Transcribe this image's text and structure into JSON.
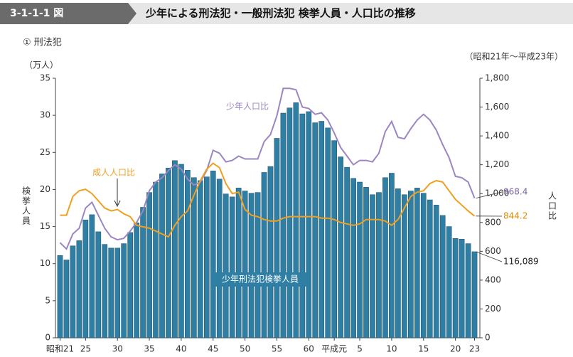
{
  "chart_data": {
    "type": "bar",
    "figure_number": "3-1-1-1 図",
    "title": "少年による刑法犯・一般刑法犯 検挙人員・人口比の推移",
    "subtitle": "① 刑法犯",
    "period": "（昭和21年～平成23年）",
    "y_unit": "（万人）",
    "ylabel": "検挙人員",
    "y2label": "人口比",
    "categories": [
      "昭和21",
      null,
      null,
      null,
      "25",
      null,
      null,
      null,
      null,
      "30",
      null,
      null,
      null,
      null,
      "35",
      null,
      null,
      null,
      null,
      "40",
      null,
      null,
      null,
      null,
      "45",
      null,
      null,
      null,
      null,
      "50",
      null,
      null,
      null,
      null,
      "55",
      null,
      null,
      null,
      null,
      "60",
      null,
      null,
      null,
      "平成元",
      null,
      null,
      null,
      "5",
      null,
      null,
      null,
      null,
      "10",
      null,
      null,
      null,
      null,
      "15",
      null,
      null,
      null,
      null,
      "20",
      null,
      null,
      "23"
    ],
    "ylim": [
      0,
      35
    ],
    "yticks": [
      0,
      5,
      10,
      15,
      20,
      25,
      30,
      35
    ],
    "y2lim": [
      0,
      1800
    ],
    "y2ticks": [
      0,
      200,
      400,
      600,
      800,
      {
        "value": 1000,
        "label": "1,000"
      },
      {
        "value": 1200,
        "label": "1,200"
      },
      {
        "value": 1400,
        "label": "1,400"
      },
      {
        "value": 1600,
        "label": "1,600"
      },
      {
        "value": 1800,
        "label": "1,800"
      }
    ],
    "series": [
      {
        "name": "少年刑法犯検挙人員",
        "type": "bar",
        "color": "#2f7ea3",
        "values": [
          11.1,
          10.5,
          12.4,
          13.1,
          15.9,
          16.6,
          14.3,
          12.6,
          12.1,
          12.1,
          12.7,
          14.2,
          15.5,
          17.6,
          19.6,
          21.0,
          22.1,
          22.9,
          23.9,
          23.4,
          22.6,
          21.6,
          21.2,
          21.7,
          22.5,
          21.4,
          19.4,
          19.0,
          20.2,
          19.8,
          19.5,
          19.6,
          22.3,
          23.1,
          26.9,
          30.3,
          31.0,
          31.7,
          30.2,
          30.5,
          29.0,
          29.2,
          28.3,
          26.6,
          24.4,
          23.0,
          21.5,
          21.0,
          20.3,
          19.3,
          19.6,
          21.6,
          22.2,
          20.1,
          19.3,
          19.8,
          20.2,
          19.5,
          18.6,
          17.9,
          16.5,
          15.0,
          13.4,
          13.3,
          12.7,
          11.6089
        ],
        "value_labels": [
          null,
          null,
          null,
          null,
          null,
          null,
          null,
          null,
          null,
          null,
          null,
          null,
          null,
          null,
          null,
          null,
          null,
          null,
          null,
          null,
          null,
          null,
          null,
          null,
          null,
          null,
          null,
          null,
          null,
          null,
          null,
          null,
          null,
          null,
          null,
          null,
          null,
          null,
          null,
          null,
          null,
          null,
          null,
          null,
          null,
          null,
          null,
          null,
          null,
          null,
          null,
          null,
          null,
          null,
          null,
          null,
          null,
          null,
          null,
          null,
          null,
          null,
          null,
          null,
          null,
          "116,089"
        ]
      },
      {
        "name": "少年人口比",
        "type": "line",
        "axis": "y2",
        "color": "#9b86c2",
        "values": [
          660,
          616,
          720,
          760,
          900,
          940,
          850,
          760,
          700,
          680,
          690,
          740,
          800,
          880,
          1020,
          1080,
          1110,
          1160,
          1200,
          1170,
          1100,
          1060,
          1080,
          1160,
          1300,
          1280,
          1220,
          1230,
          1260,
          1240,
          1240,
          1240,
          1360,
          1410,
          1540,
          1730,
          1730,
          1720,
          1600,
          1590,
          1550,
          1560,
          1510,
          1420,
          1320,
          1260,
          1200,
          1230,
          1230,
          1220,
          1280,
          1430,
          1500,
          1390,
          1380,
          1450,
          1510,
          1550,
          1510,
          1440,
          1340,
          1250,
          1120,
          1110,
          1080,
          968.4
        ]
      },
      {
        "name": "成人人口比",
        "type": "line",
        "axis": "y2",
        "color": "#f0a020",
        "values": [
          850,
          850,
          980,
          1020,
          1030,
          1000,
          950,
          900,
          880,
          890,
          860,
          840,
          780,
          770,
          760,
          740,
          720,
          700,
          780,
          840,
          880,
          990,
          1090,
          1170,
          1210,
          1180,
          1070,
          1000,
          1010,
          890,
          850,
          840,
          820,
          810,
          810,
          830,
          840,
          840,
          840,
          840,
          840,
          830,
          830,
          820,
          800,
          790,
          780,
          790,
          820,
          820,
          820,
          810,
          780,
          820,
          900,
          980,
          1010,
          1020,
          1070,
          1090,
          1080,
          1020,
          960,
          920,
          880,
          844.2
        ]
      }
    ]
  }
}
